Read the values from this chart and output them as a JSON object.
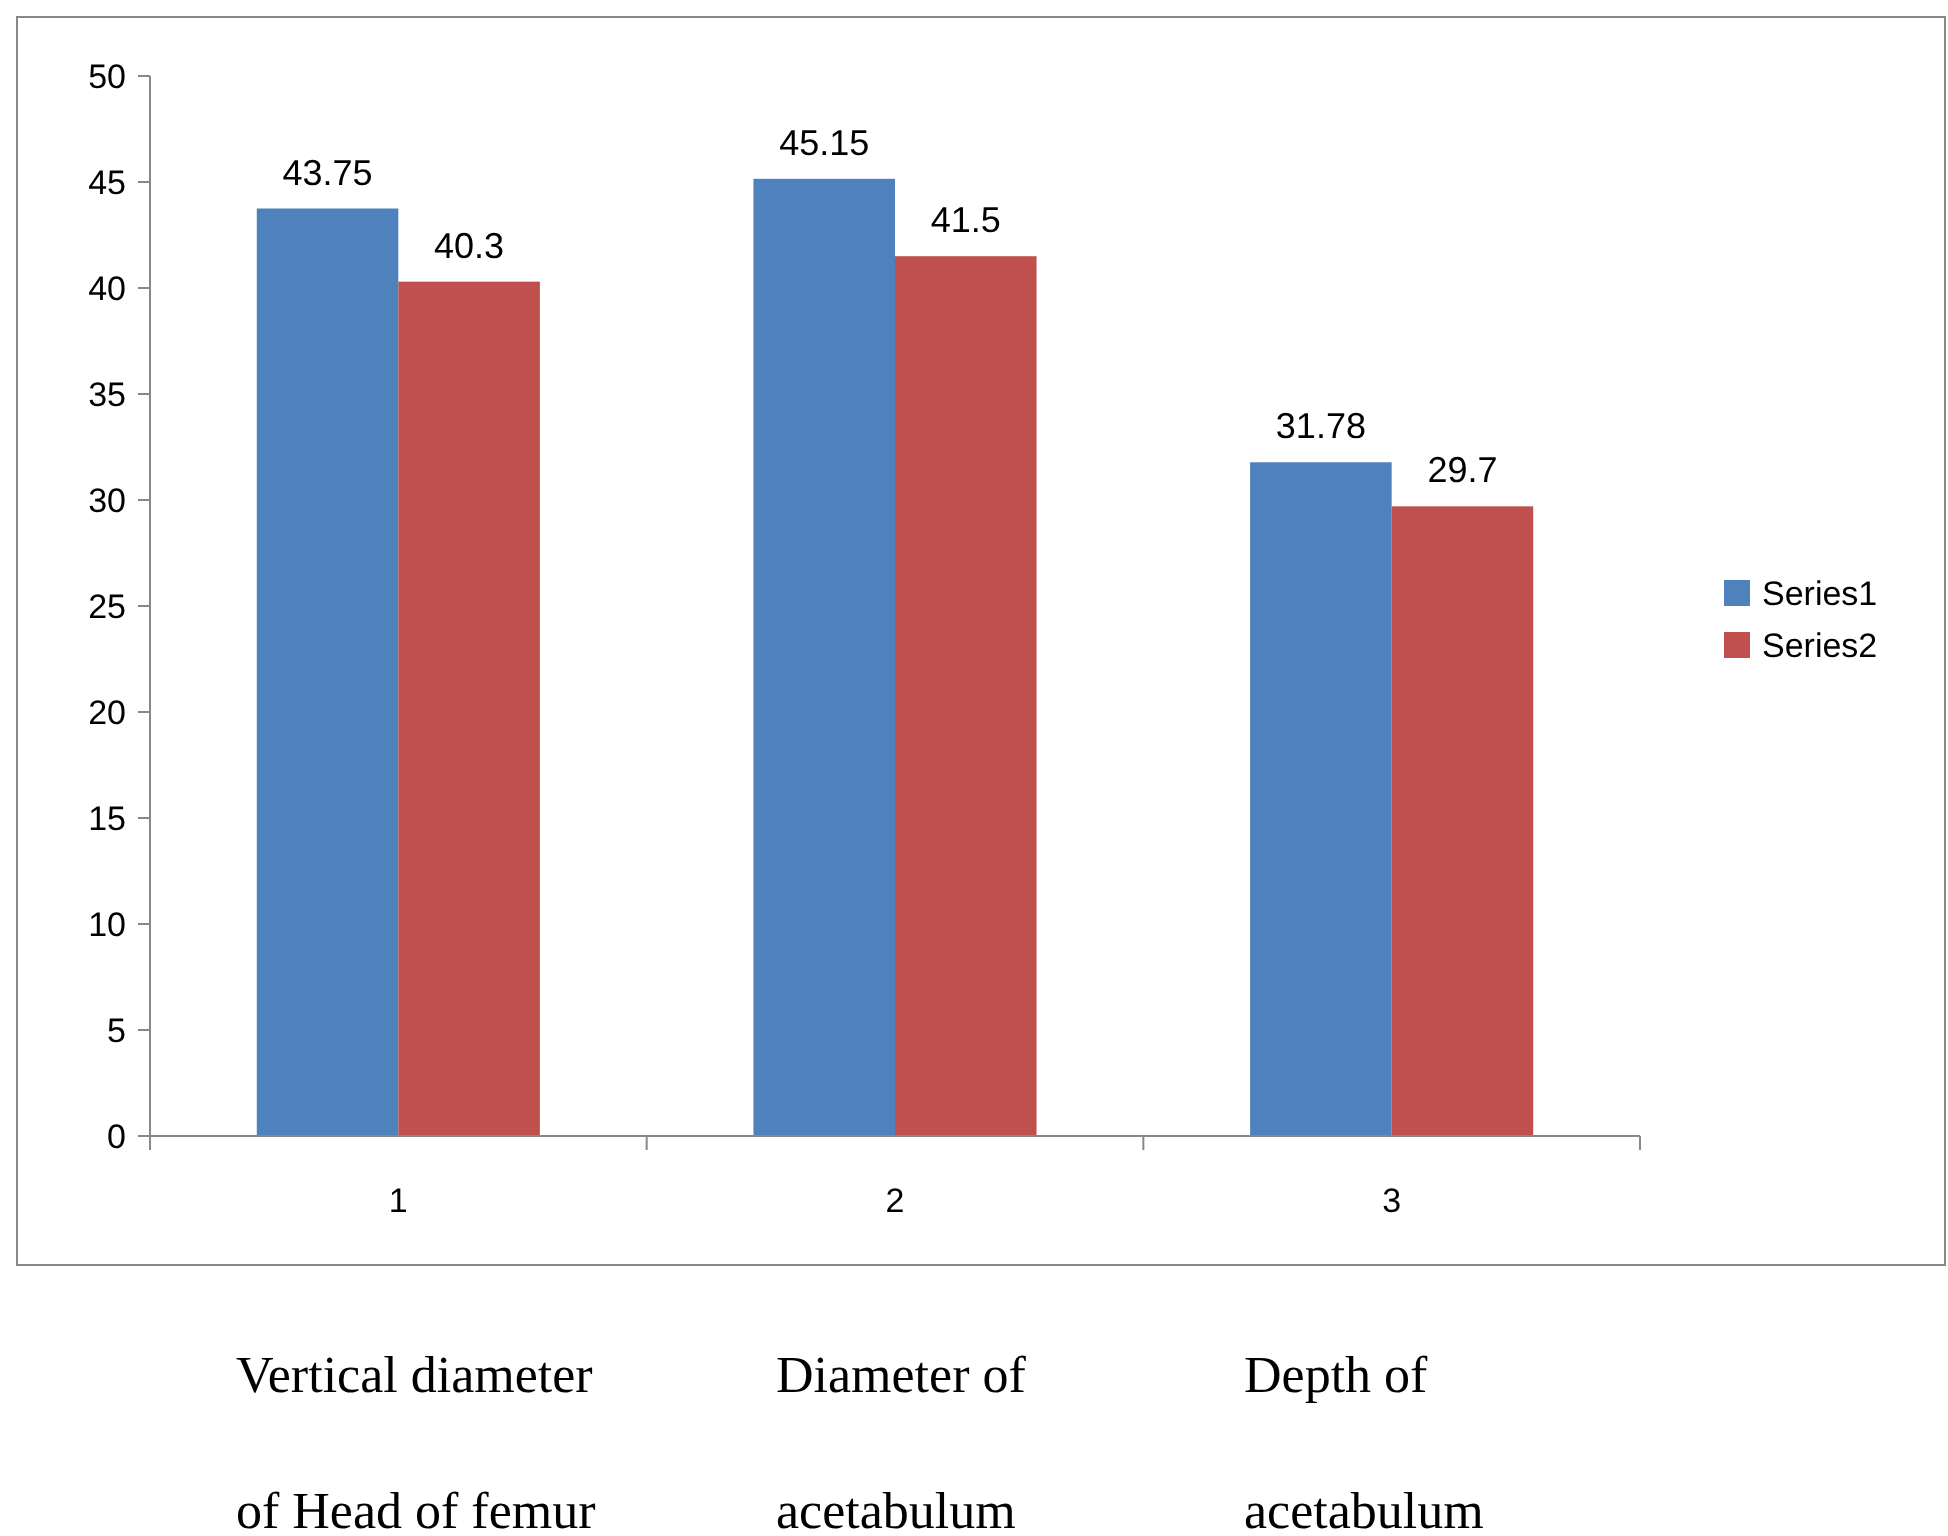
{
  "chart_data": {
    "type": "bar",
    "categories": [
      "1",
      "2",
      "3"
    ],
    "series": [
      {
        "name": "Series1",
        "color": "#4f81bd",
        "values": [
          43.75,
          45.15,
          31.78
        ]
      },
      {
        "name": "Series2",
        "color": "#c0504d",
        "values": [
          40.3,
          41.5,
          29.7
        ]
      }
    ],
    "ylim": [
      0,
      50
    ],
    "yticks": [
      0,
      5,
      10,
      15,
      20,
      25,
      30,
      35,
      40,
      45,
      50
    ],
    "grid": false,
    "legend": "right",
    "data_labels": true,
    "annotations": [
      "Vertical diameter\nof Head of femur",
      "Diameter of\nacetabulum",
      "Depth of\nacetabulum"
    ]
  }
}
